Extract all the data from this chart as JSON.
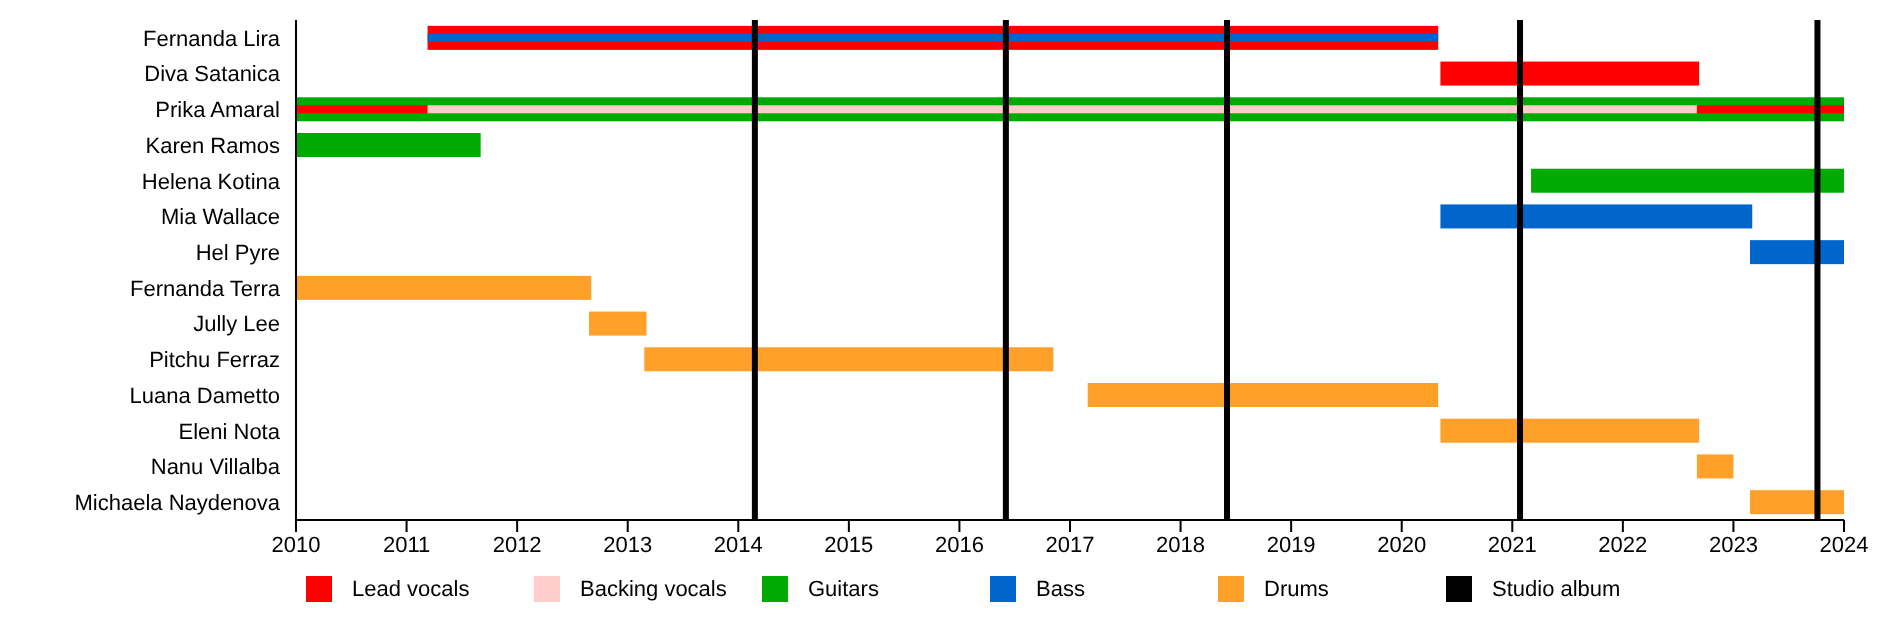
{
  "chart_data": {
    "type": "bar",
    "orientation": "horizontal",
    "categories": [
      "Fernanda Lira",
      "Diva Satanica",
      "Prika Amaral",
      "Karen Ramos",
      "Helena Kotina",
      "Mia Wallace",
      "Hel Pyre",
      "Fernanda Terra",
      "Jully Lee",
      "Pitchu Ferraz",
      "Luana Dametto",
      "Eleni Nota",
      "Nanu Villalba",
      "Michaela Naydenova"
    ],
    "series": [
      {
        "name": "Lead vocals",
        "color": "#ff0000",
        "base": [
          2011.19,
          2020.35,
          2010,
          null,
          null,
          null,
          null,
          null,
          null,
          null,
          null,
          null,
          null,
          null
        ],
        "values": [
          9.14,
          2.34,
          1.19,
          null,
          null,
          null,
          null,
          null,
          null,
          null,
          null,
          null,
          null,
          null
        ]
      },
      {
        "name": "Backing vocals",
        "color": "#ffcccc",
        "base": [
          null,
          null,
          2011.19,
          null,
          null,
          null,
          null,
          null,
          null,
          null,
          null,
          null,
          null,
          null
        ],
        "values": [
          null,
          null,
          11.48,
          null,
          null,
          null,
          null,
          null,
          null,
          null,
          null,
          null,
          null,
          null
        ]
      },
      {
        "name": "Guitars",
        "color": "#00aa00",
        "base": [
          null,
          null,
          2010,
          2010,
          2021.17,
          null,
          null,
          null,
          null,
          null,
          null,
          null,
          null,
          null
        ],
        "values": [
          null,
          null,
          14,
          1.67,
          2.83,
          null,
          null,
          null,
          null,
          null,
          null,
          null,
          null,
          null
        ]
      },
      {
        "name": "Bass",
        "color": "#0066cc",
        "base": [
          2011.19,
          null,
          null,
          null,
          null,
          2020.35,
          2023.15,
          null,
          null,
          null,
          null,
          null,
          null,
          null
        ],
        "values": [
          9.14,
          null,
          null,
          null,
          null,
          2.82,
          0.85,
          null,
          null,
          null,
          null,
          null,
          null,
          null
        ]
      },
      {
        "name": "Drums",
        "color": "#ffa028",
        "base": [
          null,
          null,
          null,
          null,
          null,
          null,
          null,
          2010,
          2012.65,
          2013.15,
          2017.16,
          2020.35,
          2022.67,
          2023.15
        ],
        "values": [
          null,
          null,
          null,
          null,
          null,
          null,
          null,
          2.67,
          0.52,
          3.7,
          3.17,
          2.34,
          0.33,
          0.85
        ]
      },
      {
        "color": "#ff0000",
        "base": [
          null,
          null,
          2022.67,
          null,
          null,
          null,
          null,
          null,
          null,
          null,
          null,
          null,
          null,
          null
        ],
        "values": [
          null,
          null,
          1.33,
          null,
          null,
          null,
          null,
          null,
          null,
          null,
          null,
          null,
          null,
          null
        ]
      }
    ],
    "ref_lines": [
      {
        "axis": "x",
        "value": 2014.15,
        "label": "Studio album",
        "color": "#000000"
      },
      {
        "axis": "x",
        "value": 2016.42,
        "color": "#000000"
      },
      {
        "axis": "x",
        "value": 2018.42,
        "color": "#000000"
      },
      {
        "axis": "x",
        "value": 2021.07,
        "color": "#000000"
      },
      {
        "axis": "x",
        "value": 2023.76,
        "color": "#000000"
      }
    ],
    "xlim": [
      2010,
      2024
    ],
    "xticks": [
      2010,
      2011,
      2012,
      2013,
      2014,
      2015,
      2016,
      2017,
      2018,
      2019,
      2020,
      2021,
      2022,
      2023,
      2024
    ],
    "legend": "bottom"
  }
}
